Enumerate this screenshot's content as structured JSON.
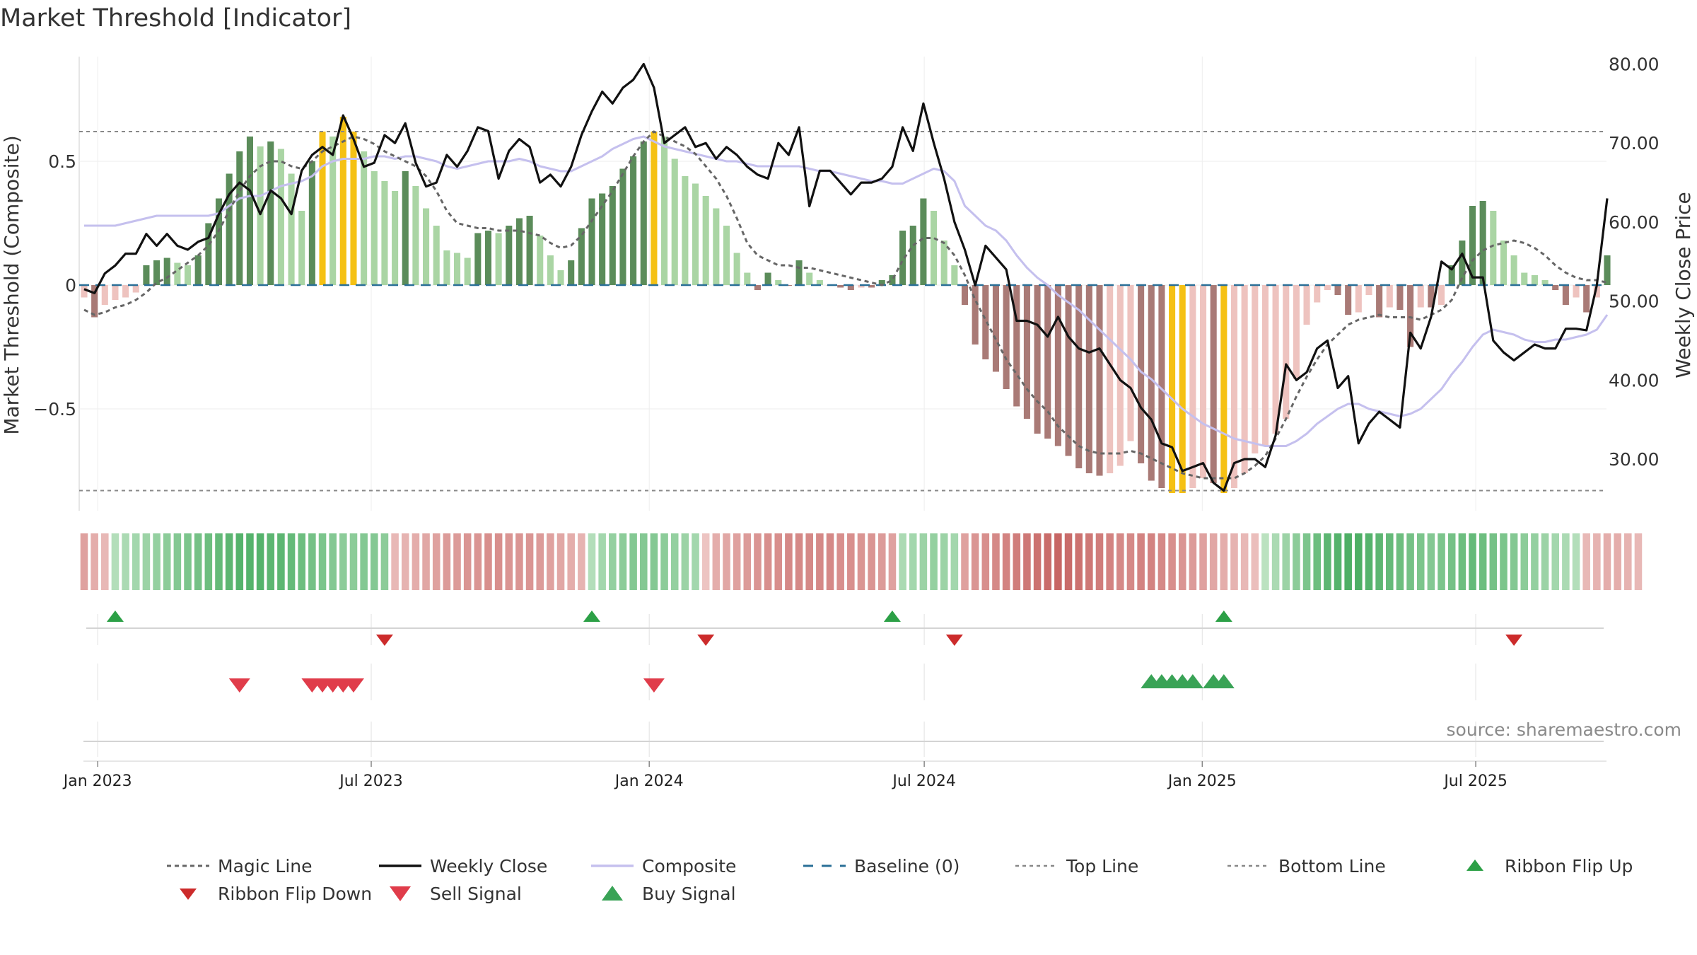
{
  "chart_data": {
    "type": "bar",
    "title": "Market Threshold [Indicator]",
    "ylabel": "Market Threshold (Composite)",
    "y2label": "Weekly Close Price",
    "ylim": [
      -1.0,
      0.95
    ],
    "y2lim": [
      19,
      82
    ],
    "yticks": [
      {
        "v": 0.5,
        "label": "0.5"
      },
      {
        "v": 0,
        "label": "0"
      },
      {
        "v": -0.5,
        "label": "−0.5"
      }
    ],
    "y2ticks": [
      {
        "v": 80,
        "label": "80.00"
      },
      {
        "v": 70,
        "label": "70.00"
      },
      {
        "v": 60,
        "label": "60.00"
      },
      {
        "v": 50,
        "label": "50.00"
      },
      {
        "v": 40,
        "label": "40.00"
      },
      {
        "v": 30,
        "label": "30.00"
      }
    ],
    "x_start": "2022-12-23",
    "x_end": "2025-09-26",
    "xticks": [
      {
        "date": "2023-01-01",
        "label": "Jan 2023"
      },
      {
        "date": "2023-07-01",
        "label": "Jul 2023"
      },
      {
        "date": "2024-01-01",
        "label": "Jan 2024"
      },
      {
        "date": "2024-07-01",
        "label": "Jul 2024"
      },
      {
        "date": "2025-01-01",
        "label": "Jan 2025"
      },
      {
        "date": "2025-07-01",
        "label": "Jul 2025"
      }
    ],
    "grid": true,
    "top_line": 0.62,
    "bottom_line": -0.83,
    "baseline": 0,
    "composite_bars": [
      -0.05,
      -0.13,
      -0.08,
      -0.06,
      -0.05,
      -0.03,
      0.08,
      0.1,
      0.11,
      0.09,
      0.08,
      0.12,
      0.25,
      0.35,
      0.45,
      0.54,
      0.6,
      0.56,
      0.58,
      0.55,
      0.45,
      0.3,
      0.5,
      0.62,
      0.6,
      0.68,
      0.62,
      0.54,
      0.46,
      0.42,
      0.38,
      0.46,
      0.4,
      0.31,
      0.24,
      0.14,
      0.13,
      0.11,
      0.21,
      0.22,
      0.21,
      0.24,
      0.27,
      0.28,
      0.2,
      0.12,
      0.06,
      0.1,
      0.23,
      0.35,
      0.37,
      0.4,
      0.47,
      0.52,
      0.58,
      0.62,
      0.6,
      0.51,
      0.44,
      0.41,
      0.36,
      0.31,
      0.24,
      0.13,
      0.05,
      -0.02,
      0.05,
      0.02,
      0.0,
      0.1,
      0.05,
      0.02,
      0.0,
      -0.01,
      -0.02,
      -0.01,
      -0.01,
      0.02,
      0.04,
      0.22,
      0.24,
      0.35,
      0.3,
      0.18,
      0.08,
      -0.08,
      -0.24,
      -0.3,
      -0.35,
      -0.42,
      -0.49,
      -0.54,
      -0.6,
      -0.62,
      -0.65,
      -0.69,
      -0.74,
      -0.76,
      -0.77,
      -0.76,
      -0.73,
      -0.63,
      -0.72,
      -0.79,
      -0.82,
      -0.84,
      -0.84,
      -0.82,
      -0.78,
      -0.8,
      -0.84,
      -0.82,
      -0.76,
      -0.68,
      -0.65,
      -0.6,
      -0.54,
      -0.38,
      -0.16,
      -0.07,
      -0.02,
      -0.04,
      -0.12,
      -0.11,
      -0.04,
      -0.13,
      -0.09,
      -0.1,
      -0.25,
      -0.09,
      -0.09,
      -0.08,
      0.08,
      0.18,
      0.32,
      0.34,
      0.3,
      0.18,
      0.12,
      0.05,
      0.04,
      0.02,
      -0.02,
      -0.08,
      -0.05,
      -0.11,
      -0.05,
      0.12
    ],
    "weekly_close": [
      51.5,
      51.0,
      53.5,
      54.5,
      56,
      56,
      58.5,
      57,
      58.5,
      57,
      56.5,
      57.5,
      58,
      61,
      63.5,
      65,
      64,
      61,
      64,
      63,
      61,
      66.5,
      68.5,
      69.5,
      68.5,
      73.5,
      70.5,
      67,
      67.5,
      71,
      70,
      72.5,
      67.5,
      64.5,
      65,
      68.5,
      67,
      69,
      72,
      71.5,
      65.5,
      69,
      70.5,
      69.5,
      65,
      66,
      64.5,
      67,
      71,
      74,
      76.5,
      75,
      77,
      78,
      80,
      77,
      70,
      71,
      72,
      69.5,
      70,
      68,
      69.5,
      68.5,
      67,
      66,
      65.5,
      70,
      68.5,
      72,
      62,
      66.5,
      66.5,
      65,
      63.5,
      65,
      65,
      65.5,
      67,
      72,
      69,
      75,
      70,
      65.5,
      60,
      56.5,
      52,
      57,
      55.5,
      54,
      47.5,
      47.5,
      47,
      45.5,
      48,
      45.5,
      44,
      43.5,
      44,
      42,
      40,
      39,
      36.5,
      35,
      32,
      31.5,
      28.5,
      29,
      29.5,
      27,
      26,
      29.5,
      30,
      30,
      29,
      33,
      42,
      40,
      41,
      44,
      45,
      39,
      40.5,
      32,
      34.5,
      36,
      35,
      34,
      46,
      44,
      48,
      55,
      54,
      56,
      53,
      53,
      45,
      43.5,
      42.5,
      43.5,
      44.5,
      44,
      44,
      46.5,
      46.5,
      46.3,
      52,
      63
    ],
    "composite_line": [
      0.24,
      0.24,
      0.24,
      0.24,
      0.25,
      0.26,
      0.27,
      0.28,
      0.28,
      0.28,
      0.28,
      0.28,
      0.28,
      0.29,
      0.32,
      0.35,
      0.36,
      0.36,
      0.38,
      0.4,
      0.41,
      0.42,
      0.44,
      0.48,
      0.5,
      0.51,
      0.51,
      0.51,
      0.52,
      0.52,
      0.51,
      0.52,
      0.52,
      0.51,
      0.5,
      0.48,
      0.47,
      0.48,
      0.49,
      0.5,
      0.5,
      0.5,
      0.51,
      0.5,
      0.48,
      0.47,
      0.46,
      0.46,
      0.48,
      0.5,
      0.52,
      0.55,
      0.57,
      0.59,
      0.6,
      0.58,
      0.56,
      0.55,
      0.54,
      0.53,
      0.52,
      0.51,
      0.5,
      0.5,
      0.49,
      0.48,
      0.48,
      0.48,
      0.48,
      0.48,
      0.47,
      0.46,
      0.46,
      0.45,
      0.44,
      0.43,
      0.42,
      0.42,
      0.41,
      0.41,
      0.43,
      0.45,
      0.47,
      0.46,
      0.42,
      0.32,
      0.28,
      0.24,
      0.22,
      0.18,
      0.12,
      0.07,
      0.03,
      0.0,
      -0.04,
      -0.07,
      -0.1,
      -0.14,
      -0.18,
      -0.22,
      -0.26,
      -0.3,
      -0.35,
      -0.38,
      -0.42,
      -0.46,
      -0.5,
      -0.53,
      -0.56,
      -0.58,
      -0.6,
      -0.62,
      -0.63,
      -0.64,
      -0.65,
      -0.65,
      -0.65,
      -0.63,
      -0.6,
      -0.56,
      -0.53,
      -0.5,
      -0.48,
      -0.48,
      -0.5,
      -0.51,
      -0.52,
      -0.53,
      -0.52,
      -0.5,
      -0.46,
      -0.42,
      -0.36,
      -0.31,
      -0.25,
      -0.2,
      -0.18,
      -0.19,
      -0.2,
      -0.22,
      -0.23,
      -0.23,
      -0.22,
      -0.22,
      -0.21,
      -0.2,
      -0.18,
      -0.12
    ],
    "magic_line": [
      -0.1,
      -0.12,
      -0.11,
      -0.09,
      -0.08,
      -0.06,
      -0.03,
      0.01,
      0.03,
      0.06,
      0.09,
      0.12,
      0.16,
      0.22,
      0.3,
      0.38,
      0.44,
      0.48,
      0.5,
      0.5,
      0.48,
      0.47,
      0.5,
      0.54,
      0.56,
      0.58,
      0.6,
      0.59,
      0.57,
      0.54,
      0.52,
      0.5,
      0.48,
      0.44,
      0.38,
      0.3,
      0.25,
      0.24,
      0.23,
      0.23,
      0.22,
      0.22,
      0.22,
      0.21,
      0.2,
      0.17,
      0.15,
      0.16,
      0.2,
      0.26,
      0.32,
      0.38,
      0.45,
      0.52,
      0.58,
      0.62,
      0.6,
      0.58,
      0.56,
      0.53,
      0.48,
      0.43,
      0.36,
      0.27,
      0.17,
      0.12,
      0.1,
      0.08,
      0.08,
      0.07,
      0.07,
      0.06,
      0.05,
      0.04,
      0.03,
      0.02,
      0.01,
      0.0,
      0.02,
      0.1,
      0.16,
      0.19,
      0.19,
      0.17,
      0.12,
      0.04,
      -0.06,
      -0.14,
      -0.22,
      -0.3,
      -0.36,
      -0.42,
      -0.47,
      -0.51,
      -0.57,
      -0.61,
      -0.65,
      -0.67,
      -0.68,
      -0.68,
      -0.68,
      -0.67,
      -0.68,
      -0.7,
      -0.72,
      -0.74,
      -0.76,
      -0.77,
      -0.78,
      -0.78,
      -0.78,
      -0.78,
      -0.76,
      -0.73,
      -0.69,
      -0.62,
      -0.54,
      -0.45,
      -0.37,
      -0.3,
      -0.24,
      -0.2,
      -0.16,
      -0.14,
      -0.13,
      -0.12,
      -0.13,
      -0.13,
      -0.13,
      -0.14,
      -0.12,
      -0.1,
      -0.06,
      0.03,
      0.1,
      0.14,
      0.16,
      0.17,
      0.18,
      0.17,
      0.15,
      0.12,
      0.08,
      0.05,
      0.03,
      0.02,
      0.02,
      0.01
    ],
    "ribbon": [
      -0.4,
      -0.3,
      -0.2,
      0.25,
      0.3,
      0.35,
      0.4,
      0.45,
      0.5,
      0.55,
      0.6,
      0.65,
      0.7,
      0.75,
      0.8,
      0.85,
      0.85,
      0.85,
      0.8,
      0.8,
      0.75,
      0.7,
      0.65,
      0.6,
      0.55,
      0.5,
      0.5,
      0.55,
      0.55,
      0.5,
      -0.2,
      -0.25,
      -0.3,
      -0.35,
      -0.4,
      -0.45,
      -0.45,
      -0.5,
      -0.5,
      -0.55,
      -0.55,
      -0.5,
      -0.5,
      -0.5,
      -0.45,
      -0.4,
      -0.35,
      -0.3,
      -0.25,
      0.25,
      0.35,
      0.45,
      0.5,
      0.55,
      0.55,
      0.55,
      0.5,
      0.45,
      0.4,
      0.35,
      -0.1,
      -0.3,
      -0.35,
      -0.4,
      -0.45,
      -0.5,
      -0.55,
      -0.55,
      -0.6,
      -0.6,
      -0.6,
      -0.6,
      -0.6,
      -0.55,
      -0.55,
      -0.5,
      -0.5,
      -0.45,
      -0.4,
      0.3,
      0.35,
      0.4,
      0.45,
      0.4,
      0.35,
      -0.4,
      -0.5,
      -0.55,
      -0.6,
      -0.65,
      -0.7,
      -0.75,
      -0.8,
      -0.85,
      -0.9,
      -0.85,
      -0.8,
      -0.75,
      -0.7,
      -0.65,
      -0.6,
      -0.6,
      -0.65,
      -0.65,
      -0.6,
      -0.55,
      -0.5,
      -0.45,
      -0.4,
      -0.35,
      -0.3,
      -0.25,
      -0.2,
      -0.15,
      0.2,
      0.3,
      0.4,
      0.5,
      0.6,
      0.7,
      0.8,
      0.85,
      0.9,
      0.9,
      0.85,
      0.8,
      0.75,
      0.7,
      0.65,
      0.6,
      0.55,
      0.6,
      0.65,
      0.7,
      0.75,
      0.7,
      0.65,
      0.6,
      0.55,
      0.5,
      0.45,
      0.4,
      0.35,
      0.3,
      0.25,
      -0.2,
      -0.25,
      -0.3,
      -0.3,
      -0.25,
      -0.2
    ],
    "ribbon_flip_up": [
      3,
      49,
      78,
      110
    ],
    "ribbon_flip_down": [
      29,
      60,
      84,
      138
    ],
    "sell_signals": [
      15,
      22,
      23,
      24,
      25,
      26,
      55
    ],
    "buy_signals": [
      103,
      104,
      105,
      106,
      107,
      109,
      110
    ],
    "colors": {
      "bar_pos_strong": "#5b8c5a",
      "bar_pos_weak": "#aad5a4",
      "bar_neg_strong": "#a97a76",
      "bar_neg_weak": "#eec3bf",
      "bar_extreme": "#f5c114",
      "weekly_close": "#111111",
      "composite": "#c5c0ee",
      "magic_line": "#666666",
      "baseline": "#2a6f97",
      "threshold_line": "#888888",
      "flip_up": "#2ca046",
      "flip_down": "#cc2b2b",
      "sell": "#e03c4a",
      "buy": "#39a356"
    },
    "source": "source: sharemaestro.com",
    "legend": [
      {
        "key": "magic",
        "label": "Magic Line"
      },
      {
        "key": "close",
        "label": "Weekly Close"
      },
      {
        "key": "composite",
        "label": "Composite"
      },
      {
        "key": "baseline",
        "label": "Baseline (0)"
      },
      {
        "key": "top",
        "label": "Top Line"
      },
      {
        "key": "bottom",
        "label": "Bottom Line"
      },
      {
        "key": "flipup",
        "label": "Ribbon Flip Up"
      },
      {
        "key": "flipdown",
        "label": "Ribbon Flip Down"
      },
      {
        "key": "sell",
        "label": "Sell Signal"
      },
      {
        "key": "buy",
        "label": "Buy Signal"
      }
    ]
  }
}
